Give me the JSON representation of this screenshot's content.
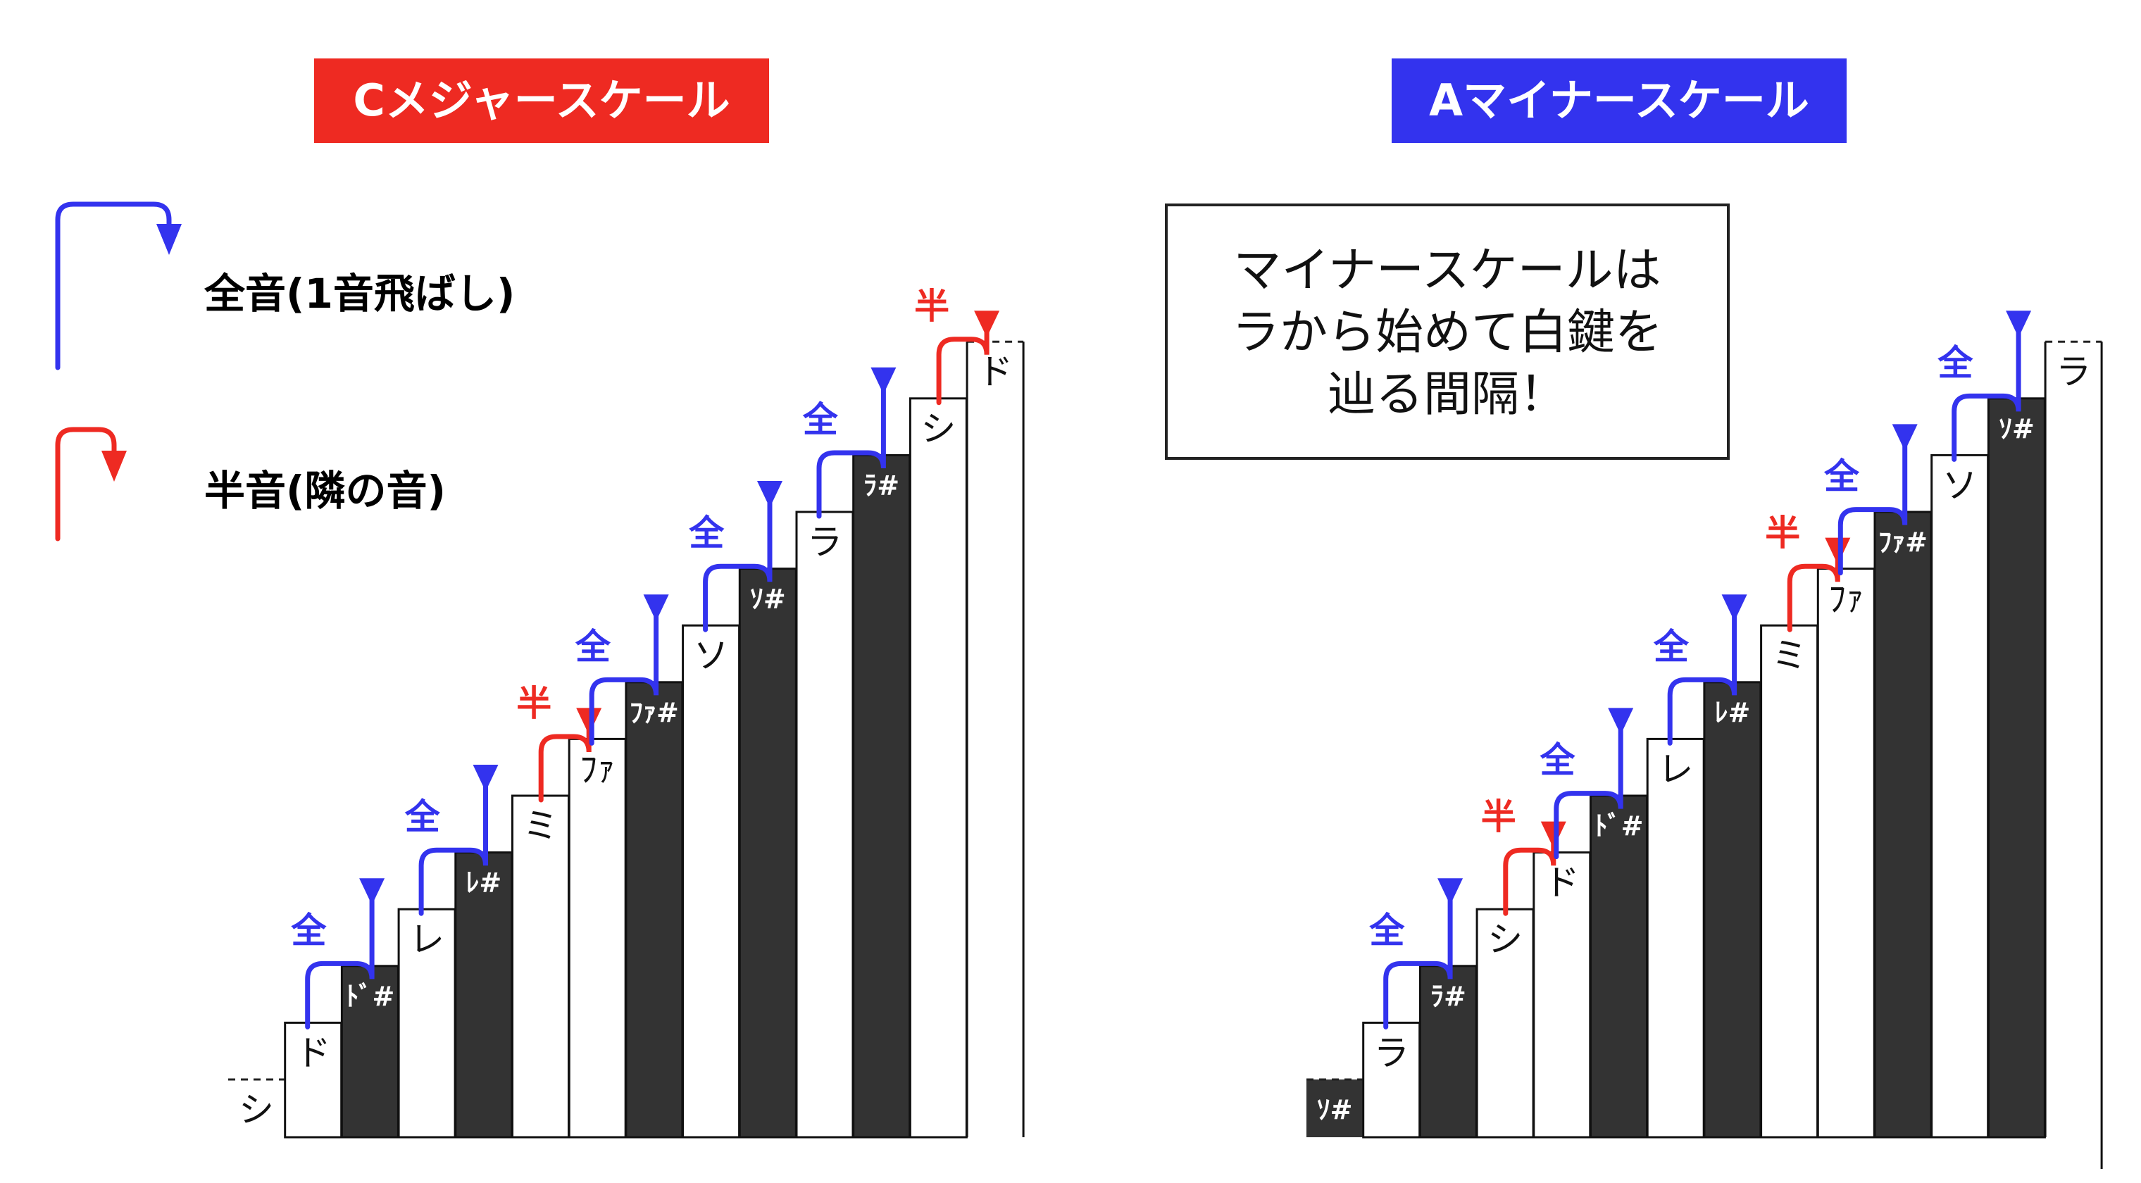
{
  "colors": {
    "whole": "#3333ee",
    "half": "#ee2a22",
    "black_key": "#333333"
  },
  "legend": {
    "whole": {
      "label": "全音(1音飛ばし)"
    },
    "half": {
      "label": "半音(隣の音)"
    }
  },
  "note_box": {
    "lines": [
      "マイナースケールは",
      "ラから始めて白鍵を",
      "辿る間隔！"
    ]
  },
  "panels": [
    {
      "title": "Cメジャースケール",
      "banner_color": "#ee2a22",
      "keys": [
        {
          "label": "シ",
          "color": "white",
          "ghost": true
        },
        {
          "label": "ド",
          "color": "white"
        },
        {
          "label": "ﾄﾞ#",
          "color": "black"
        },
        {
          "label": "レ",
          "color": "white"
        },
        {
          "label": "ﾚ#",
          "color": "black"
        },
        {
          "label": "ミ",
          "color": "white"
        },
        {
          "label": "ﾌｧ",
          "color": "white"
        },
        {
          "label": "ﾌｧ#",
          "color": "black"
        },
        {
          "label": "ソ",
          "color": "white"
        },
        {
          "label": "ｿ#",
          "color": "black"
        },
        {
          "label": "ラ",
          "color": "white"
        },
        {
          "label": "ﾗ#",
          "color": "black"
        },
        {
          "label": "シ",
          "color": "white"
        },
        {
          "label": "ド",
          "color": "white",
          "ghost": true
        }
      ],
      "steps": [
        {
          "from": 1,
          "to": 3,
          "type": "whole",
          "label": "全"
        },
        {
          "from": 3,
          "to": 5,
          "type": "whole",
          "label": "全"
        },
        {
          "from": 5,
          "to": 6,
          "type": "half",
          "label": "半"
        },
        {
          "from": 6,
          "to": 8,
          "type": "whole",
          "label": "全"
        },
        {
          "from": 8,
          "to": 10,
          "type": "whole",
          "label": "全"
        },
        {
          "from": 10,
          "to": 12,
          "type": "whole",
          "label": "全"
        },
        {
          "from": 12,
          "to": 13,
          "type": "half",
          "label": "半"
        }
      ]
    },
    {
      "title": "Aマイナースケール",
      "banner_color": "#3333ee",
      "keys": [
        {
          "label": "ｿ#",
          "color": "black",
          "ghost": true
        },
        {
          "label": "ラ",
          "color": "white"
        },
        {
          "label": "ﾗ#",
          "color": "black"
        },
        {
          "label": "シ",
          "color": "white"
        },
        {
          "label": "ド",
          "color": "white"
        },
        {
          "label": "ﾄﾞ#",
          "color": "black"
        },
        {
          "label": "レ",
          "color": "white"
        },
        {
          "label": "ﾚ#",
          "color": "black"
        },
        {
          "label": "ミ",
          "color": "white"
        },
        {
          "label": "ﾌｧ",
          "color": "white"
        },
        {
          "label": "ﾌｧ#",
          "color": "black"
        },
        {
          "label": "ソ",
          "color": "white"
        },
        {
          "label": "ｿ#",
          "color": "black"
        },
        {
          "label": "ラ",
          "color": "white",
          "ghost": true
        }
      ],
      "steps": [
        {
          "from": 1,
          "to": 3,
          "type": "whole",
          "label": "全"
        },
        {
          "from": 3,
          "to": 4,
          "type": "half",
          "label": "半"
        },
        {
          "from": 4,
          "to": 6,
          "type": "whole",
          "label": "全"
        },
        {
          "from": 6,
          "to": 8,
          "type": "whole",
          "label": "全"
        },
        {
          "from": 8,
          "to": 9,
          "type": "half",
          "label": "半"
        },
        {
          "from": 9,
          "to": 11,
          "type": "whole",
          "label": "全"
        },
        {
          "from": 11,
          "to": 13,
          "type": "whole",
          "label": "全"
        }
      ]
    }
  ]
}
